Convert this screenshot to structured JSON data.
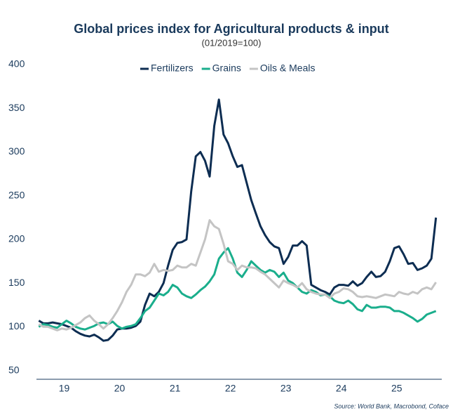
{
  "chart_data": {
    "type": "line",
    "title": "Global prices index for Agricultural products & input",
    "subtitle": "(01/2019=100)",
    "source": "Source: World Bank, Macrobond, Coface",
    "x": [
      2019.042,
      2019.125,
      2019.208,
      2019.292,
      2019.375,
      2019.458,
      2019.542,
      2019.625,
      2019.708,
      2019.792,
      2019.875,
      2019.958,
      2020.042,
      2020.125,
      2020.208,
      2020.292,
      2020.375,
      2020.458,
      2020.542,
      2020.625,
      2020.708,
      2020.792,
      2020.875,
      2020.958,
      2021.042,
      2021.125,
      2021.208,
      2021.292,
      2021.375,
      2021.458,
      2021.542,
      2021.625,
      2021.708,
      2021.792,
      2021.875,
      2021.958,
      2022.042,
      2022.125,
      2022.208,
      2022.292,
      2022.375,
      2022.458,
      2022.542,
      2022.625,
      2022.708,
      2022.792,
      2022.875,
      2022.958,
      2023.042,
      2023.125,
      2023.208,
      2023.292,
      2023.375,
      2023.458,
      2023.542,
      2023.625,
      2023.708,
      2023.792,
      2023.875,
      2023.958,
      2024.042,
      2024.125,
      2024.208,
      2024.292,
      2024.375,
      2024.458,
      2024.542,
      2024.625,
      2024.708,
      2024.792,
      2024.875,
      2024.958,
      2025.042,
      2025.125,
      2025.208,
      2025.292,
      2025.375,
      2025.458,
      2025.542,
      2025.625,
      2025.708,
      2025.792,
      2025.875,
      2025.958,
      2026.042,
      2026.125,
      2026.208
    ],
    "series": [
      {
        "name": "Fertilizers",
        "color": "#0d2d52",
        "values": [
          107,
          104,
          104,
          105,
          104,
          103,
          101,
          99,
          95,
          92,
          90,
          89,
          91,
          88,
          84,
          85,
          90,
          97,
          98,
          98,
          99,
          101,
          106,
          125,
          138,
          135,
          140,
          150,
          170,
          188,
          196,
          197,
          200,
          255,
          295,
          300,
          290,
          272,
          330,
          360,
          320,
          310,
          295,
          283,
          285,
          265,
          245,
          230,
          215,
          205,
          197,
          192,
          190,
          172,
          180,
          193,
          193,
          198,
          193,
          148,
          145,
          142,
          140,
          137,
          145,
          148,
          148,
          147,
          152,
          147,
          150,
          157,
          163,
          157,
          158,
          163,
          175,
          190,
          192,
          183,
          172,
          173,
          165,
          167,
          170,
          178,
          225
        ]
      },
      {
        "name": "Grains",
        "color": "#1aae8c",
        "values": [
          100,
          103,
          102,
          100,
          99,
          103,
          107,
          104,
          100,
          98,
          97,
          99,
          101,
          104,
          105,
          103,
          106,
          101,
          98,
          100,
          101,
          103,
          110,
          118,
          122,
          130,
          138,
          136,
          140,
          148,
          145,
          138,
          135,
          133,
          137,
          142,
          146,
          152,
          160,
          178,
          185,
          190,
          178,
          162,
          157,
          165,
          175,
          170,
          165,
          162,
          165,
          163,
          157,
          162,
          153,
          150,
          145,
          140,
          138,
          142,
          140,
          136,
          137,
          135,
          130,
          128,
          127,
          130,
          126,
          120,
          118,
          125,
          122,
          122,
          123,
          123,
          122,
          118,
          118,
          116,
          113,
          110,
          106,
          109,
          114,
          116,
          118
        ]
      },
      {
        "name": "Oils & Meals",
        "color": "#c4c4c4",
        "values": [
          103,
          100,
          100,
          98,
          96,
          98,
          97,
          99,
          102,
          105,
          110,
          113,
          107,
          103,
          98,
          103,
          110,
          118,
          128,
          140,
          148,
          160,
          160,
          158,
          162,
          172,
          163,
          165,
          164,
          165,
          170,
          168,
          168,
          172,
          170,
          185,
          200,
          222,
          215,
          212,
          195,
          175,
          172,
          165,
          170,
          168,
          168,
          167,
          163,
          160,
          155,
          150,
          145,
          153,
          150,
          148,
          145,
          150,
          143,
          140,
          138,
          137,
          137,
          133,
          138,
          140,
          144,
          143,
          140,
          135,
          134,
          135,
          134,
          133,
          135,
          137,
          136,
          135,
          140,
          138,
          137,
          140,
          138,
          143,
          145,
          143,
          151
        ]
      }
    ],
    "xlim": [
      2019,
      2026.3
    ],
    "xticks": [
      {
        "value": 2019.5,
        "label": "19"
      },
      {
        "value": 2020.5,
        "label": "20"
      },
      {
        "value": 2021.5,
        "label": "21"
      },
      {
        "value": 2022.5,
        "label": "22"
      },
      {
        "value": 2023.5,
        "label": "23"
      },
      {
        "value": 2024.5,
        "label": "24"
      },
      {
        "value": 2025.5,
        "label": "25"
      }
    ],
    "ylim": [
      40,
      400
    ],
    "yticks": [
      50,
      100,
      150,
      200,
      250,
      300,
      350,
      400
    ],
    "grid": false,
    "legend": "top"
  }
}
